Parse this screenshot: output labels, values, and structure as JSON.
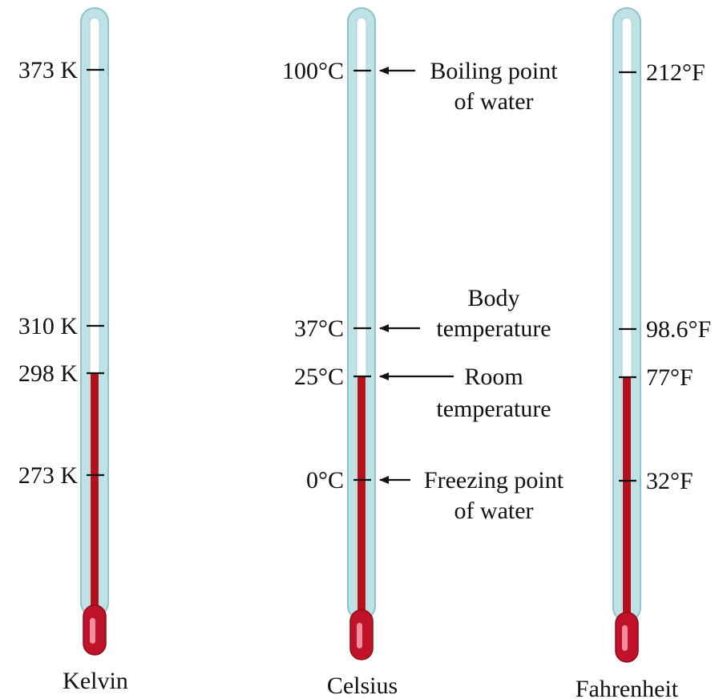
{
  "colors": {
    "tube_fill": "#bfe2e6",
    "tube_edge": "#8fc2c9",
    "bore": "#ffffff",
    "mercury": "#b3121d",
    "bulb": "#c01228",
    "bulb_highlight": "#f08ea0"
  },
  "thermometers": [
    {
      "name": "Kelvin",
      "ticks": [
        "373 K",
        "310 K",
        "298 K",
        "273 K"
      ]
    },
    {
      "name": "Celsius",
      "ticks": [
        "100°C",
        "37°C",
        "25°C",
        "0°C"
      ]
    },
    {
      "name": "Fahrenheit",
      "ticks": [
        "212°F",
        "98.6°F",
        "77°F",
        "32°F"
      ]
    }
  ],
  "annotations": {
    "boiling_line1": "Boiling point",
    "boiling_line2": "of water",
    "body_line1": "Body",
    "body_line2": "temperature",
    "room_line1": "Room",
    "room_line2": "temperature",
    "freezing_line1": "Freezing point",
    "freezing_line2": "of water"
  }
}
